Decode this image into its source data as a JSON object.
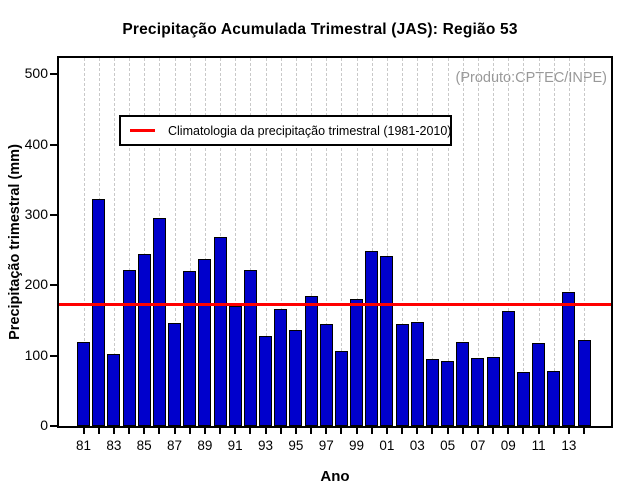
{
  "title": "Precipitação Acumulada Trimestral (JAS): Região 53",
  "watermark": "(Produto:CPTEC/INPE)",
  "legend": {
    "label": "Climatologia da precipitação trimestral (1981-2010)"
  },
  "chart_data": {
    "type": "bar",
    "title": "Precipitação Acumulada Trimestral (JAS): Região 53",
    "xlabel": "Ano",
    "ylabel": "Precipitação trimestral (mm)",
    "ylim": [
      0,
      523
    ],
    "yticks": [
      0,
      100,
      200,
      300,
      400,
      500
    ],
    "categories": [
      "81",
      "82",
      "83",
      "84",
      "85",
      "86",
      "87",
      "88",
      "89",
      "90",
      "91",
      "92",
      "93",
      "94",
      "95",
      "96",
      "97",
      "98",
      "99",
      "00",
      "01",
      "02",
      "03",
      "04",
      "05",
      "06",
      "07",
      "08",
      "09",
      "10",
      "11",
      "12",
      "13",
      "14"
    ],
    "values": [
      120,
      322,
      102,
      222,
      245,
      295,
      147,
      220,
      238,
      268,
      171,
      222,
      128,
      166,
      136,
      185,
      145,
      107,
      181,
      249,
      242,
      145,
      148,
      95,
      92,
      119,
      96,
      98,
      164,
      77,
      118,
      78,
      190,
      122
    ],
    "x_tick_labels_shown": [
      "81",
      "83",
      "85",
      "87",
      "89",
      "91",
      "93",
      "95",
      "97",
      "99",
      "01",
      "03",
      "05",
      "07",
      "09",
      "11",
      "13"
    ],
    "climatology_mm": 173,
    "legend_entry": "Climatologia da precipitação trimestral (1981-2010)",
    "legend_position": "top-left",
    "grid": "vertical-dashed",
    "colors": {
      "bar": "#0000CC",
      "bar_border": "#000000",
      "climatology_line": "#FF0000",
      "grid": "#C9C9C9",
      "watermark": "#999999"
    }
  }
}
